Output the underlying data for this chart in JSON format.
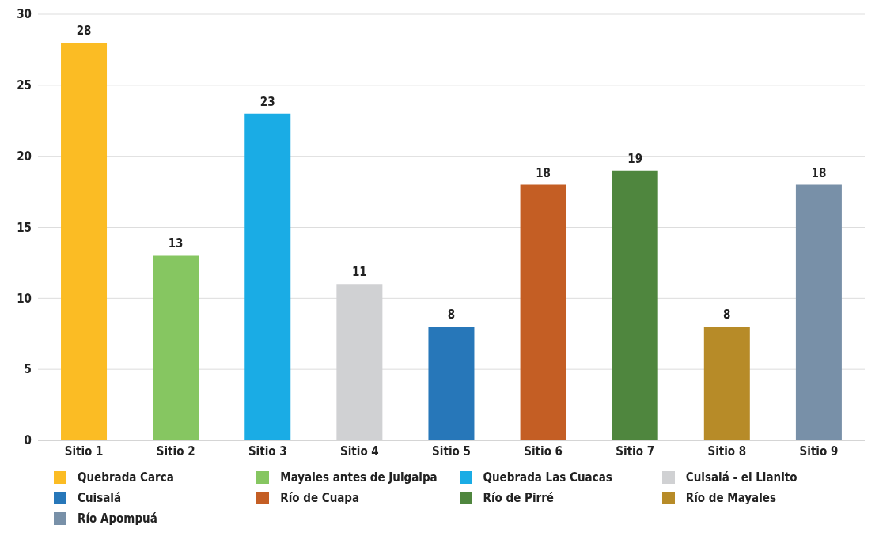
{
  "chart_data": {
    "type": "bar",
    "stacked": true,
    "categories": [
      "Sitio 1",
      "Sitio 2",
      "Sitio 3",
      "Sitio 4",
      "Sitio 5",
      "Sitio 6",
      "Sitio 7",
      "Sitio 8",
      "Sitio 9"
    ],
    "series": [
      {
        "name": "Quebrada Carca",
        "color": "#fbbc24",
        "values": [
          28,
          null,
          null,
          null,
          null,
          null,
          null,
          null,
          null
        ]
      },
      {
        "name": "Mayales antes de Juigalpa",
        "color": "#86c661",
        "values": [
          null,
          13,
          null,
          null,
          null,
          null,
          null,
          null,
          null
        ]
      },
      {
        "name": "Quebrada Las Cuacas",
        "color": "#1aace5",
        "values": [
          null,
          null,
          23,
          null,
          null,
          null,
          null,
          null,
          null
        ]
      },
      {
        "name": "Cuisalá - el Llanito",
        "color": "#d0d1d3",
        "values": [
          null,
          null,
          null,
          11,
          null,
          null,
          null,
          null,
          null
        ]
      },
      {
        "name": "Cuisalá",
        "color": "#2777b9",
        "values": [
          null,
          null,
          null,
          null,
          8,
          null,
          null,
          null,
          null
        ]
      },
      {
        "name": "Río de Cuapa",
        "color": "#c45e24",
        "values": [
          null,
          null,
          null,
          null,
          null,
          18,
          null,
          null,
          null
        ]
      },
      {
        "name": "Río de Pirré",
        "color": "#4f863e",
        "values": [
          null,
          null,
          null,
          null,
          null,
          null,
          19,
          null,
          null
        ]
      },
      {
        "name": "Río de Mayales",
        "color": "#b78b28",
        "values": [
          null,
          null,
          null,
          null,
          null,
          null,
          null,
          8,
          null
        ]
      },
      {
        "name": "Río Apompuá",
        "color": "#7890a8",
        "values": [
          null,
          null,
          null,
          null,
          null,
          null,
          null,
          null,
          18
        ]
      }
    ],
    "ylim": [
      0,
      30
    ],
    "yticks": [
      0,
      5,
      10,
      15,
      20,
      25,
      30
    ],
    "grid": "y",
    "legend": "bottom",
    "data_labels": true
  }
}
